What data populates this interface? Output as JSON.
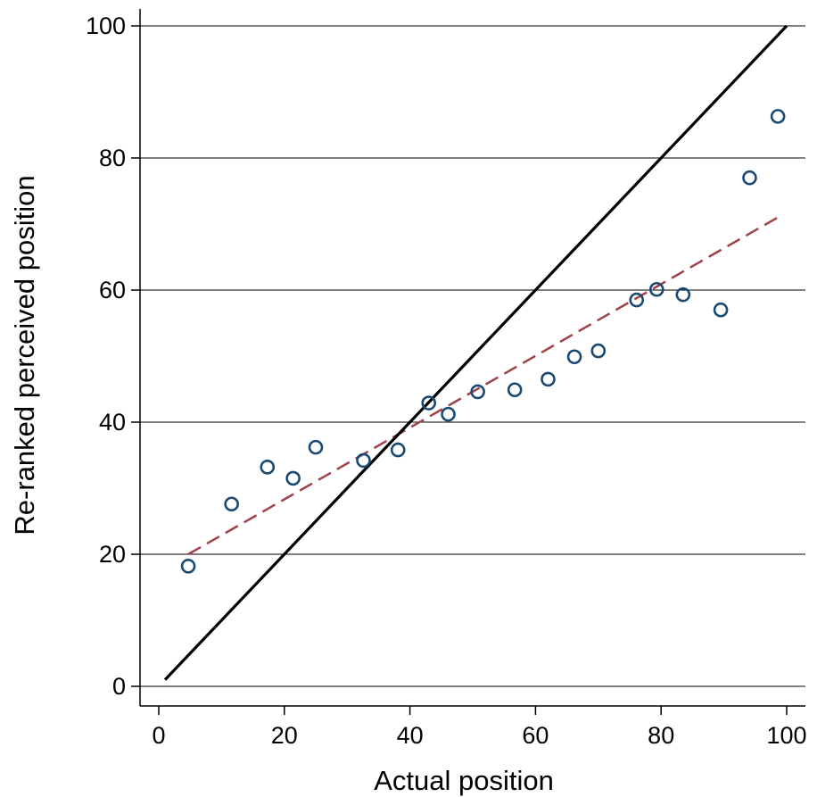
{
  "chart_data": {
    "type": "scatter",
    "title": "",
    "xlabel": "Actual position",
    "ylabel": "Re-ranked perceived position",
    "xlim": [
      0,
      100
    ],
    "ylim": [
      0,
      100
    ],
    "xticks": [
      0,
      20,
      40,
      60,
      80,
      100
    ],
    "yticks": [
      0,
      20,
      40,
      60,
      80,
      100
    ],
    "grid": "horizontal",
    "legend": "none",
    "series": [
      {
        "type": "scatter",
        "marker": "hollow-circle",
        "color": "#1a4a72",
        "x": [
          4.7,
          11.6,
          17.3,
          21.4,
          25.0,
          32.6,
          38.1,
          43.0,
          46.1,
          50.8,
          56.7,
          62.0,
          66.2,
          70.0,
          76.1,
          79.3,
          83.5,
          89.5,
          94.1,
          98.6
        ],
        "y": [
          18.2,
          27.6,
          33.2,
          31.5,
          36.2,
          34.2,
          35.8,
          42.9,
          41.2,
          44.6,
          44.9,
          46.5,
          49.9,
          50.8,
          58.5,
          60.1,
          59.3,
          57.0,
          77.0,
          86.3
        ]
      },
      {
        "type": "line",
        "style": "dashed",
        "color": "#a0424a",
        "x": [
          4.7,
          98.6
        ],
        "y": [
          20.0,
          71.0
        ]
      },
      {
        "type": "line",
        "style": "solid",
        "color": "#000000",
        "x": [
          1,
          100
        ],
        "y": [
          1,
          100
        ]
      }
    ]
  }
}
